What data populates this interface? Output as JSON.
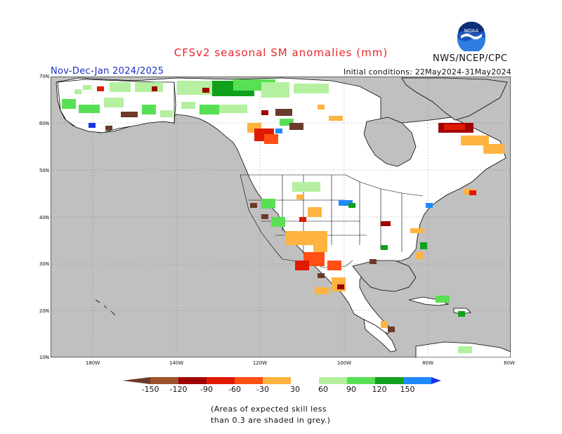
{
  "title": "CFSv2 seasonal SM anomalies (mm)",
  "agency": "NWS/NCEP/CPC",
  "logo_text": "NOAA",
  "period": "Nov-Dec-Jan 2024/2025",
  "initial_conditions": "Initial conditions: 22May2024-31May2024",
  "lat_labels": [
    "70N",
    "60N",
    "50N",
    "40N",
    "30N",
    "20N",
    "10N"
  ],
  "lon_labels": [
    "180W",
    "140W",
    "120W",
    "100W",
    "80W",
    "60W"
  ],
  "colorbar": {
    "labels": [
      "-150",
      "-120",
      "-90",
      "-60",
      "-30",
      "30",
      "60",
      "90",
      "120",
      "150"
    ],
    "colors": [
      "#6b3a2a",
      "#a0522d",
      "#a00000",
      "#e01a00",
      "#ff4f14",
      "#ffb340",
      "#ffffff",
      "#b4f0a0",
      "#58e054",
      "#11a01c",
      "#1f8aff",
      "#1c32e8"
    ]
  },
  "note": {
    "line1": "(Areas of expected skill less",
    "line2": "than 0.3 are shaded in grey.)"
  },
  "colors": {
    "grey_mask": "#c0c0c0",
    "title": "#e8262a",
    "period": "#1a2ec8"
  }
}
